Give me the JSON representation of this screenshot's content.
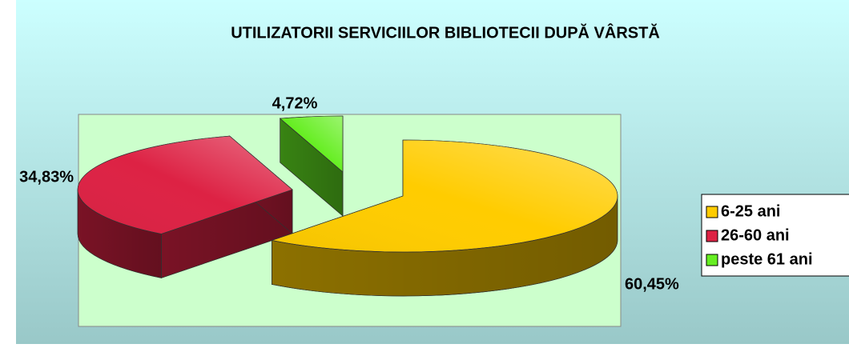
{
  "chart_data": {
    "type": "pie",
    "title": "UTILIZATORII SERVICIILOR BIBLIOTECII DUPĂ VÂRSTĂ",
    "categories": [
      "6-25 ani",
      "26-60 ani",
      "peste 61 ani"
    ],
    "values": [
      60.45,
      34.83,
      4.72
    ],
    "value_labels": [
      "60,45%",
      "34,83%",
      "4,72%"
    ],
    "colors": [
      "#ffcc00",
      "#dd2244",
      "#66ee22"
    ],
    "legend": "right"
  }
}
